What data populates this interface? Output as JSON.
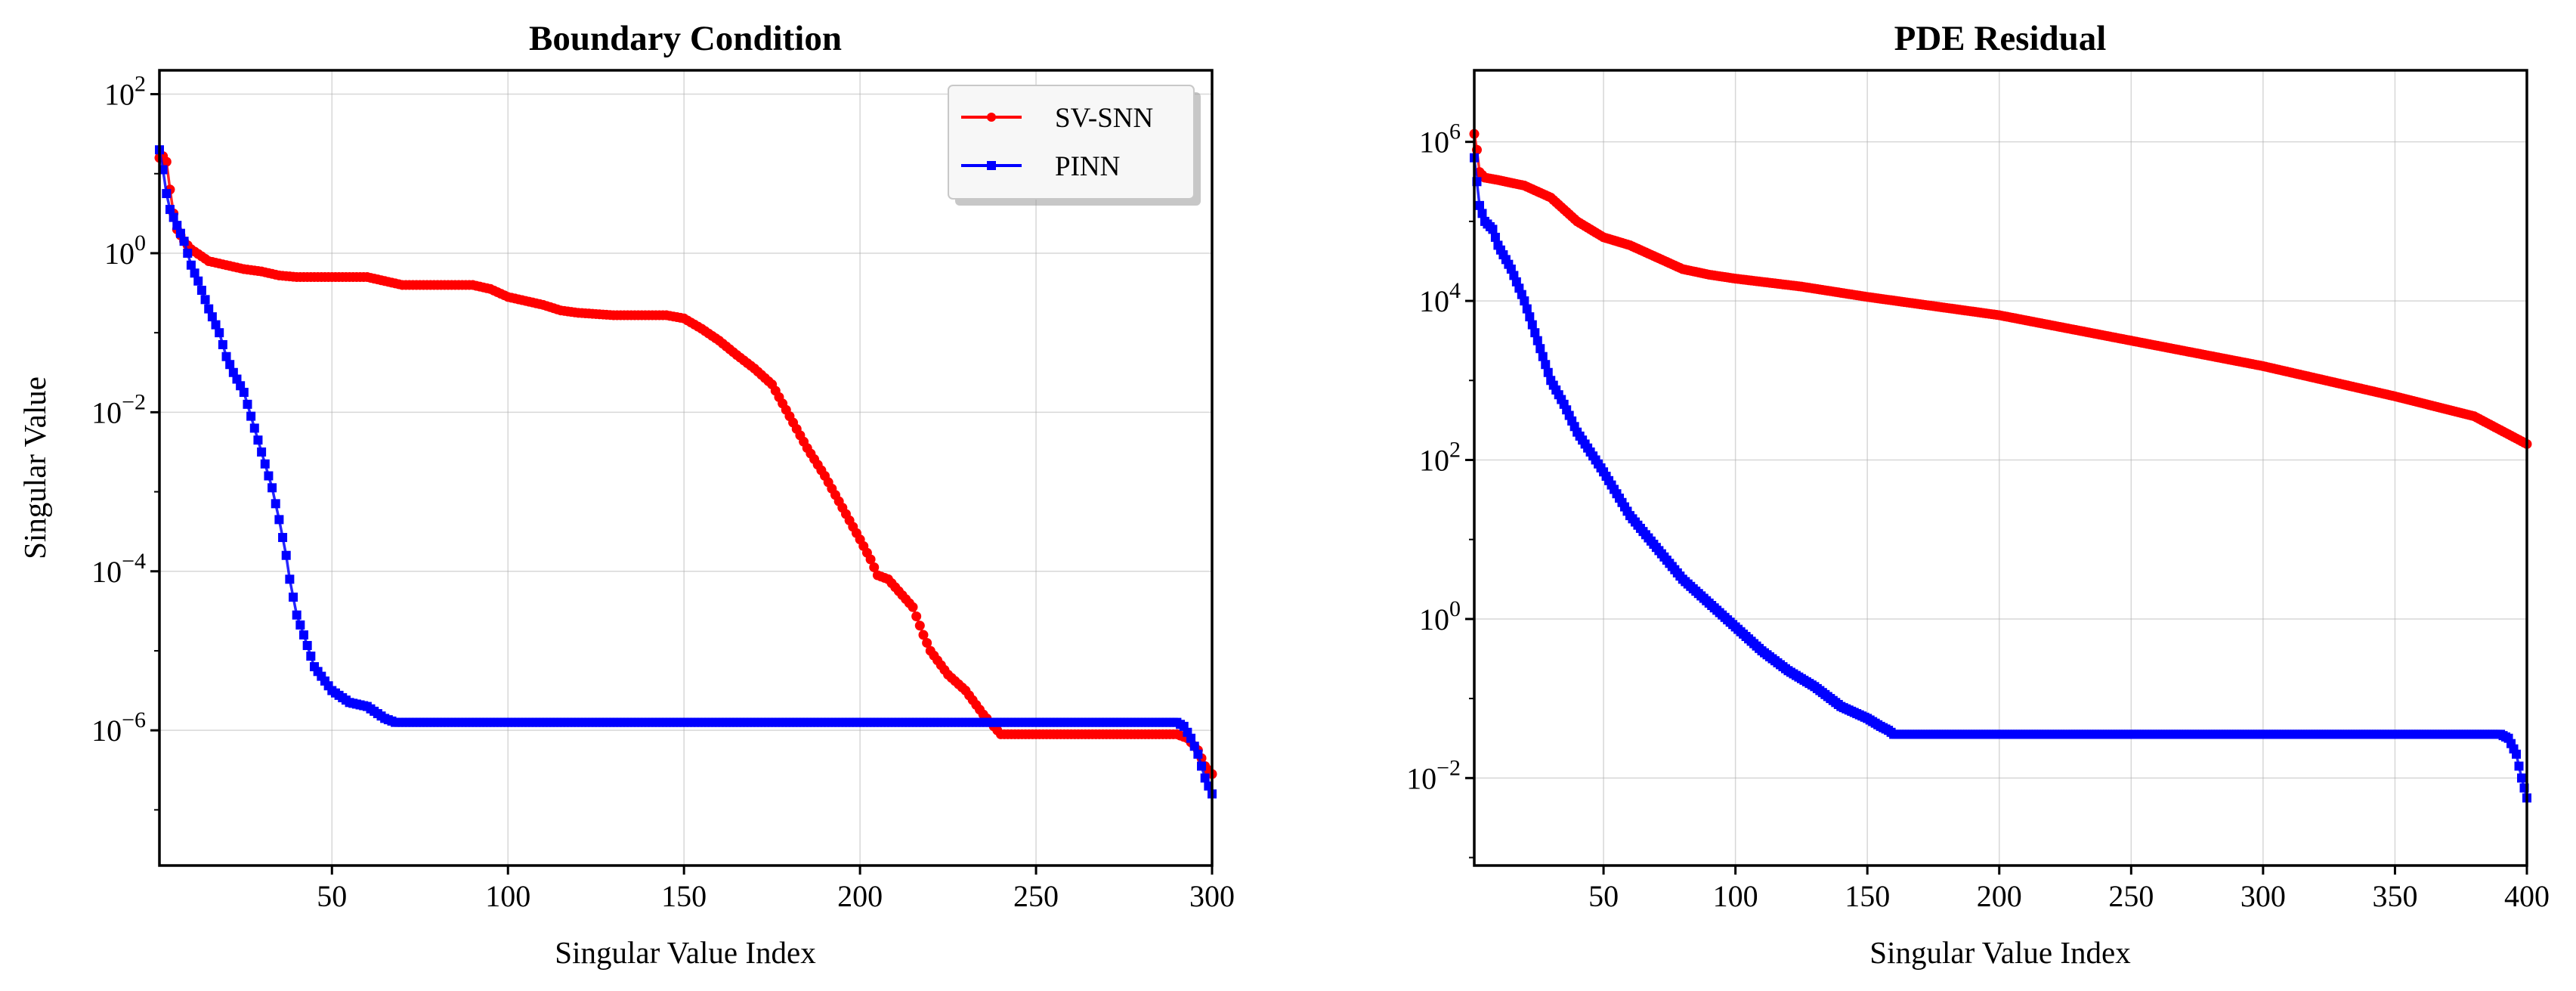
{
  "chart_data": [
    {
      "type": "line",
      "title": "Boundary Condition",
      "xlabel": "Singular Value Index",
      "ylabel": "Singular Value",
      "yscale": "log",
      "xlim": [
        1,
        300
      ],
      "ylim_exp": [
        -7.7,
        2.3
      ],
      "grid": true,
      "legend": "top-right",
      "xticks": [
        50,
        100,
        150,
        200,
        250,
        300
      ],
      "xtick_labels": [
        "50",
        "100",
        "150",
        "200",
        "250",
        "300"
      ],
      "ytick_exps": [
        2,
        0,
        -2,
        -4,
        -6
      ],
      "series": [
        {
          "name": "SV-SNN",
          "color": "#ff0000",
          "marker": "circle",
          "x": [
            1,
            2,
            3,
            4,
            5,
            6,
            8,
            10,
            15,
            20,
            25,
            30,
            35,
            40,
            45,
            50,
            60,
            65,
            70,
            75,
            80,
            90,
            95,
            100,
            105,
            110,
            115,
            120,
            130,
            140,
            145,
            150,
            155,
            160,
            165,
            170,
            175,
            180,
            185,
            190,
            195,
            200,
            203,
            205,
            208,
            210,
            215,
            218,
            220,
            225,
            230,
            235,
            238,
            240,
            250,
            260,
            270,
            280,
            290,
            293,
            296,
            298,
            300
          ],
          "log10": [
            1.2,
            1.22,
            1.15,
            0.8,
            0.5,
            0.3,
            0.15,
            0.05,
            -0.1,
            -0.15,
            -0.2,
            -0.23,
            -0.28,
            -0.3,
            -0.3,
            -0.3,
            -0.3,
            -0.35,
            -0.4,
            -0.4,
            -0.4,
            -0.4,
            -0.45,
            -0.55,
            -0.6,
            -0.65,
            -0.72,
            -0.75,
            -0.78,
            -0.78,
            -0.78,
            -0.82,
            -0.95,
            -1.1,
            -1.28,
            -1.45,
            -1.65,
            -2.05,
            -2.45,
            -2.8,
            -3.2,
            -3.6,
            -3.85,
            -4.05,
            -4.1,
            -4.2,
            -4.45,
            -4.8,
            -5.0,
            -5.3,
            -5.5,
            -5.8,
            -5.95,
            -6.05,
            -6.05,
            -6.05,
            -6.05,
            -6.05,
            -6.05,
            -6.1,
            -6.25,
            -6.45,
            -6.55
          ]
        },
        {
          "name": "PINN",
          "color": "#0000ff",
          "marker": "square",
          "x": [
            1,
            2,
            3,
            4,
            6,
            8,
            10,
            12,
            15,
            18,
            20,
            22,
            25,
            28,
            30,
            33,
            35,
            37,
            38,
            40,
            42,
            45,
            50,
            55,
            60,
            65,
            68,
            70,
            100,
            150,
            200,
            250,
            280,
            290,
            292,
            294,
            296,
            298,
            300
          ],
          "log10": [
            1.3,
            1.05,
            0.75,
            0.55,
            0.35,
            0.15,
            -0.15,
            -0.35,
            -0.7,
            -1.0,
            -1.3,
            -1.5,
            -1.75,
            -2.2,
            -2.5,
            -2.95,
            -3.35,
            -3.8,
            -4.1,
            -4.55,
            -4.8,
            -5.2,
            -5.5,
            -5.65,
            -5.7,
            -5.85,
            -5.9,
            -5.9,
            -5.9,
            -5.9,
            -5.9,
            -5.9,
            -5.9,
            -5.9,
            -5.95,
            -6.1,
            -6.3,
            -6.6,
            -6.8
          ]
        }
      ],
      "legend_entries": [
        "SV-SNN",
        "PINN"
      ]
    },
    {
      "type": "line",
      "title": "PDE Residual",
      "xlabel": "Singular Value Index",
      "ylabel": "",
      "yscale": "log",
      "xlim": [
        1,
        400
      ],
      "ylim_exp": [
        -3.1,
        6.9
      ],
      "grid": true,
      "xticks": [
        50,
        100,
        150,
        200,
        250,
        300,
        350,
        400
      ],
      "xtick_labels": [
        "50",
        "100",
        "150",
        "200",
        "250",
        "300",
        "350",
        "400"
      ],
      "ytick_exps": [
        6,
        4,
        2,
        0,
        -2
      ],
      "series": [
        {
          "name": "SV-SNN",
          "color": "#ff0000",
          "marker": "circle",
          "x": [
            1,
            2,
            3,
            5,
            10,
            20,
            30,
            40,
            50,
            60,
            70,
            80,
            90,
            100,
            125,
            150,
            200,
            250,
            300,
            350,
            380,
            400
          ],
          "log10": [
            6.1,
            5.9,
            5.62,
            5.55,
            5.52,
            5.45,
            5.3,
            5.0,
            4.8,
            4.7,
            4.55,
            4.4,
            4.33,
            4.28,
            4.18,
            4.05,
            3.82,
            3.5,
            3.18,
            2.8,
            2.55,
            2.2
          ]
        },
        {
          "name": "PINN",
          "color": "#0000ff",
          "marker": "square",
          "x": [
            1,
            2,
            3,
            5,
            8,
            10,
            15,
            20,
            25,
            30,
            35,
            40,
            45,
            50,
            60,
            70,
            80,
            90,
            100,
            110,
            120,
            130,
            140,
            150,
            155,
            158,
            160,
            200,
            300,
            380,
            390,
            393,
            396,
            398,
            400
          ],
          "log10": [
            5.8,
            5.5,
            5.2,
            5.0,
            4.9,
            4.7,
            4.4,
            4.0,
            3.5,
            3.0,
            2.7,
            2.35,
            2.1,
            1.85,
            1.3,
            0.9,
            0.5,
            0.2,
            -0.1,
            -0.4,
            -0.65,
            -0.85,
            -1.1,
            -1.25,
            -1.35,
            -1.4,
            -1.45,
            -1.45,
            -1.45,
            -1.45,
            -1.45,
            -1.5,
            -1.7,
            -2.0,
            -2.25
          ]
        }
      ]
    }
  ]
}
